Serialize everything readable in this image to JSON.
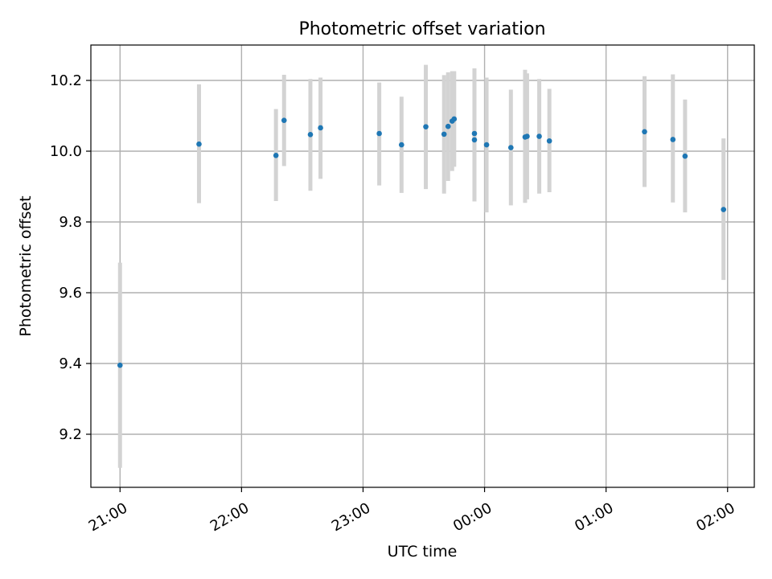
{
  "chart_data": {
    "type": "scatter",
    "title": "Photometric offset variation",
    "xlabel": "UTC time",
    "ylabel": "Photometric offset",
    "x_unit": "UTC hours (times after midnight shown past 24)",
    "xlim": [
      20.76,
      26.22
    ],
    "ylim": [
      9.05,
      10.3
    ],
    "x_ticks": [
      {
        "value": 21,
        "label": "21:00"
      },
      {
        "value": 22,
        "label": "22:00"
      },
      {
        "value": 23,
        "label": "23:00"
      },
      {
        "value": 24,
        "label": "00:00"
      },
      {
        "value": 25,
        "label": "01:00"
      },
      {
        "value": 26,
        "label": "02:00"
      }
    ],
    "y_ticks": [
      {
        "value": 9.2,
        "label": "9.2"
      },
      {
        "value": 9.4,
        "label": "9.4"
      },
      {
        "value": 9.6,
        "label": "9.6"
      },
      {
        "value": 9.8,
        "label": "9.8"
      },
      {
        "value": 10.0,
        "label": "10.0"
      },
      {
        "value": 10.2,
        "label": "10.2"
      }
    ],
    "grid": true,
    "series": [
      {
        "marker_color": "#1f77b4",
        "errorbar_color": "#d3d3d3",
        "points": [
          {
            "x": "21:00",
            "y": 9.395,
            "err_low": 9.105,
            "err_high": 9.685
          },
          {
            "x": "21:39",
            "y": 10.02,
            "err_low": 9.853,
            "err_high": 10.189
          },
          {
            "x": "22:17",
            "y": 9.988,
            "err_low": 9.859,
            "err_high": 10.119
          },
          {
            "x": "22:21",
            "y": 10.087,
            "err_low": 9.958,
            "err_high": 10.216
          },
          {
            "x": "22:34",
            "y": 10.047,
            "err_low": 9.888,
            "err_high": 10.204
          },
          {
            "x": "22:39",
            "y": 10.066,
            "err_low": 9.922,
            "err_high": 10.208
          },
          {
            "x": "23:08",
            "y": 10.05,
            "err_low": 9.903,
            "err_high": 10.194
          },
          {
            "x": "23:19",
            "y": 10.018,
            "err_low": 9.882,
            "err_high": 10.154
          },
          {
            "x": "23:31",
            "y": 10.069,
            "err_low": 9.893,
            "err_high": 10.244
          },
          {
            "x": "23:40",
            "y": 10.048,
            "err_low": 9.88,
            "err_high": 10.215
          },
          {
            "x": "23:42",
            "y": 10.07,
            "err_low": 9.916,
            "err_high": 10.223
          },
          {
            "x": "23:44",
            "y": 10.085,
            "err_low": 9.944,
            "err_high": 10.226
          },
          {
            "x": "23:45",
            "y": 10.091,
            "err_low": 9.956,
            "err_high": 10.226
          },
          {
            "x": "23:55",
            "y": 10.05,
            "err_low": 9.866,
            "err_high": 10.234
          },
          {
            "x": "23:55",
            "y": 10.032,
            "err_low": 9.858,
            "err_high": 10.206
          },
          {
            "x": "00:01",
            "y": 10.018,
            "err_low": 9.827,
            "err_high": 10.208
          },
          {
            "x": "00:13",
            "y": 10.01,
            "err_low": 9.847,
            "err_high": 10.174
          },
          {
            "x": "00:20",
            "y": 10.04,
            "err_low": 9.854,
            "err_high": 10.23
          },
          {
            "x": "00:21",
            "y": 10.042,
            "err_low": 9.864,
            "err_high": 10.22
          },
          {
            "x": "00:27",
            "y": 10.042,
            "err_low": 9.88,
            "err_high": 10.204
          },
          {
            "x": "00:32",
            "y": 10.029,
            "err_low": 9.884,
            "err_high": 10.176
          },
          {
            "x": "01:19",
            "y": 10.055,
            "err_low": 9.899,
            "err_high": 10.212
          },
          {
            "x": "01:33",
            "y": 10.033,
            "err_low": 9.855,
            "err_high": 10.217
          },
          {
            "x": "01:39",
            "y": 9.986,
            "err_low": 9.827,
            "err_high": 10.146
          },
          {
            "x": "01:58",
            "y": 9.835,
            "err_low": 9.636,
            "err_high": 10.036
          }
        ]
      }
    ]
  }
}
